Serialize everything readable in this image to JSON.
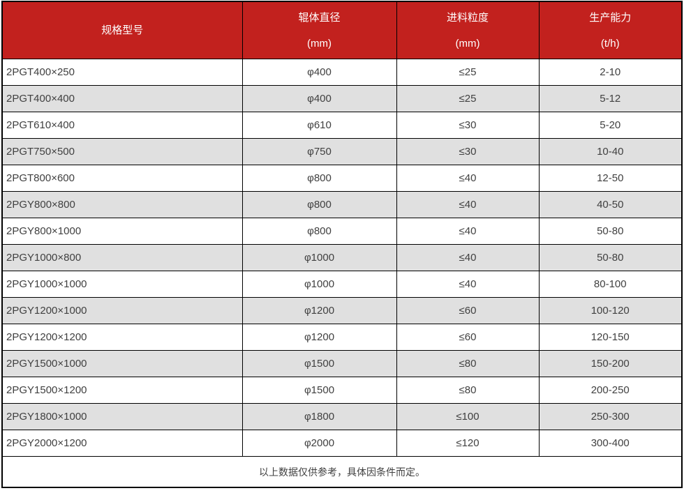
{
  "chart_data": {
    "type": "table",
    "columns": [
      {
        "title": "规格型号",
        "unit": ""
      },
      {
        "title": "辊体直径",
        "unit": "(mm)"
      },
      {
        "title": "进料粒度",
        "unit": "(mm)"
      },
      {
        "title": "生产能力",
        "unit": "(t/h)"
      }
    ],
    "rows": [
      [
        "2PGT400×250",
        "φ400",
        "≤25",
        "2-10"
      ],
      [
        "2PGT400×400",
        "φ400",
        "≤25",
        "5-12"
      ],
      [
        "2PGT610×400",
        "φ610",
        "≤30",
        "5-20"
      ],
      [
        "2PGT750×500",
        "φ750",
        "≤30",
        "10-40"
      ],
      [
        "2PGT800×600",
        "φ800",
        "≤40",
        "12-50"
      ],
      [
        "2PGY800×800",
        "φ800",
        "≤40",
        "40-50"
      ],
      [
        "2PGY800×1000",
        "φ800",
        "≤40",
        "50-80"
      ],
      [
        "2PGY1000×800",
        "φ1000",
        "≤40",
        "50-80"
      ],
      [
        "2PGY1000×1000",
        "φ1000",
        "≤40",
        "80-100"
      ],
      [
        "2PGY1200×1000",
        "φ1200",
        "≤60",
        "100-120"
      ],
      [
        "2PGY1200×1200",
        "φ1200",
        "≤60",
        "120-150"
      ],
      [
        "2PGY1500×1000",
        "φ1500",
        "≤80",
        "150-200"
      ],
      [
        "2PGY1500×1200",
        "φ1500",
        "≤80",
        "200-250"
      ],
      [
        "2PGY1800×1000",
        "φ1800",
        "≤100",
        "250-300"
      ],
      [
        "2PGY2000×1200",
        "φ2000",
        "≤120",
        "300-400"
      ]
    ],
    "footnote": "以上数据仅供参考，具体因条件而定。"
  },
  "colors": {
    "header_bg": "#c2211e",
    "header_text": "#ffffff",
    "row_bg": "#ffffff",
    "row_alt_bg": "#e0e0e0",
    "border": "#000000",
    "cell_text": "#404040"
  }
}
